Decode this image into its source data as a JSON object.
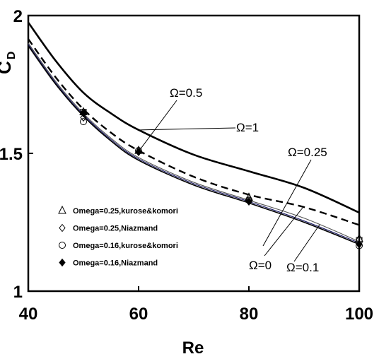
{
  "chart_data": {
    "type": "line",
    "xlabel": "Re",
    "ylabel": {
      "main": "C",
      "sub": "D"
    },
    "xlim": [
      40,
      100
    ],
    "ylim": [
      1,
      2
    ],
    "xticks": [
      "40",
      "60",
      "80",
      "100"
    ],
    "yticks": [
      "1",
      "1.5",
      "2"
    ],
    "grid": false,
    "series": [
      {
        "name": "Ω=1",
        "style": "solid-thick",
        "color": "#000000",
        "x": [
          40,
          45,
          50,
          55,
          60,
          70,
          80,
          90,
          100
        ],
        "y": [
          1.975,
          1.835,
          1.72,
          1.645,
          1.585,
          1.495,
          1.435,
          1.375,
          1.285
        ]
      },
      {
        "name": "Ω=0.5",
        "style": "dashed",
        "color": "#000000",
        "x": [
          40,
          45,
          50,
          55,
          60,
          70,
          80,
          90,
          100
        ],
        "y": [
          1.915,
          1.775,
          1.66,
          1.575,
          1.51,
          1.415,
          1.35,
          1.305,
          1.24
        ]
      },
      {
        "name": "Ω=0.25",
        "style": "thin",
        "color": "#555555",
        "x": [
          40,
          45,
          50,
          55,
          60,
          70,
          80,
          90,
          100
        ],
        "y": [
          1.9,
          1.76,
          1.645,
          1.555,
          1.485,
          1.395,
          1.33,
          1.265,
          1.18
        ]
      },
      {
        "name": "Ω=0.1",
        "style": "thin",
        "color": "#1a1a66",
        "x": [
          40,
          45,
          50,
          55,
          60,
          70,
          80,
          90,
          100
        ],
        "y": [
          1.895,
          1.755,
          1.64,
          1.55,
          1.48,
          1.39,
          1.325,
          1.255,
          1.175
        ]
      },
      {
        "name": "Ω=0",
        "style": "solid",
        "color": "#000000",
        "x": [
          40,
          45,
          50,
          55,
          60,
          70,
          80,
          90,
          100
        ],
        "y": [
          1.89,
          1.75,
          1.635,
          1.545,
          1.475,
          1.385,
          1.32,
          1.25,
          1.17
        ]
      }
    ],
    "markers": [
      {
        "name": "Omega=0.25,kurose&komori",
        "symbol": "triangle",
        "x": [
          50,
          60,
          80,
          100
        ],
        "y": [
          1.65,
          1.51,
          1.34,
          1.19
        ]
      },
      {
        "name": "Omega=0.25,Niazmand",
        "symbol": "diamond-open",
        "x": [
          50,
          60,
          80,
          100
        ],
        "y": [
          1.63,
          1.505,
          1.33,
          1.17
        ]
      },
      {
        "name": "Omega=0.16,kurose&komori",
        "symbol": "circle",
        "x": [
          50,
          60,
          80,
          100
        ],
        "y": [
          1.615,
          1.51,
          1.33,
          1.165
        ]
      },
      {
        "name": "Omega=0.16,Niazmand",
        "symbol": "diamond-filled",
        "x": [
          50,
          60,
          80,
          100
        ],
        "y": [
          1.645,
          1.505,
          1.325,
          1.17
        ]
      },
      {
        "name": "",
        "symbol": "square",
        "x": [
          50,
          100
        ],
        "y": [
          1.65,
          1.185
        ]
      }
    ],
    "annotations": [
      {
        "text": "Ω=0.5",
        "target": [
          60,
          1.51
        ]
      },
      {
        "text": "Ω=1",
        "target": [
          60,
          1.585
        ]
      },
      {
        "text": "Ω=0.25",
        "target": [
          86,
          1.3
        ]
      },
      {
        "text": "Ω=0",
        "target": [
          88,
          1.31
        ]
      },
      {
        "text": "Ω=0.1",
        "target": [
          92,
          1.255
        ]
      }
    ],
    "legend": {
      "placement": "bottom-left",
      "entries": [
        {
          "symbol": "triangle",
          "label": "Omega=0.25,kurose&komori"
        },
        {
          "symbol": "diamond-open",
          "label": "Omega=0.25,Niazmand"
        },
        {
          "symbol": "circle",
          "label": "Omega=0.16,kurose&komori"
        },
        {
          "symbol": "diamond-filled",
          "label": "Omega=0.16,Niazmand"
        }
      ]
    }
  }
}
